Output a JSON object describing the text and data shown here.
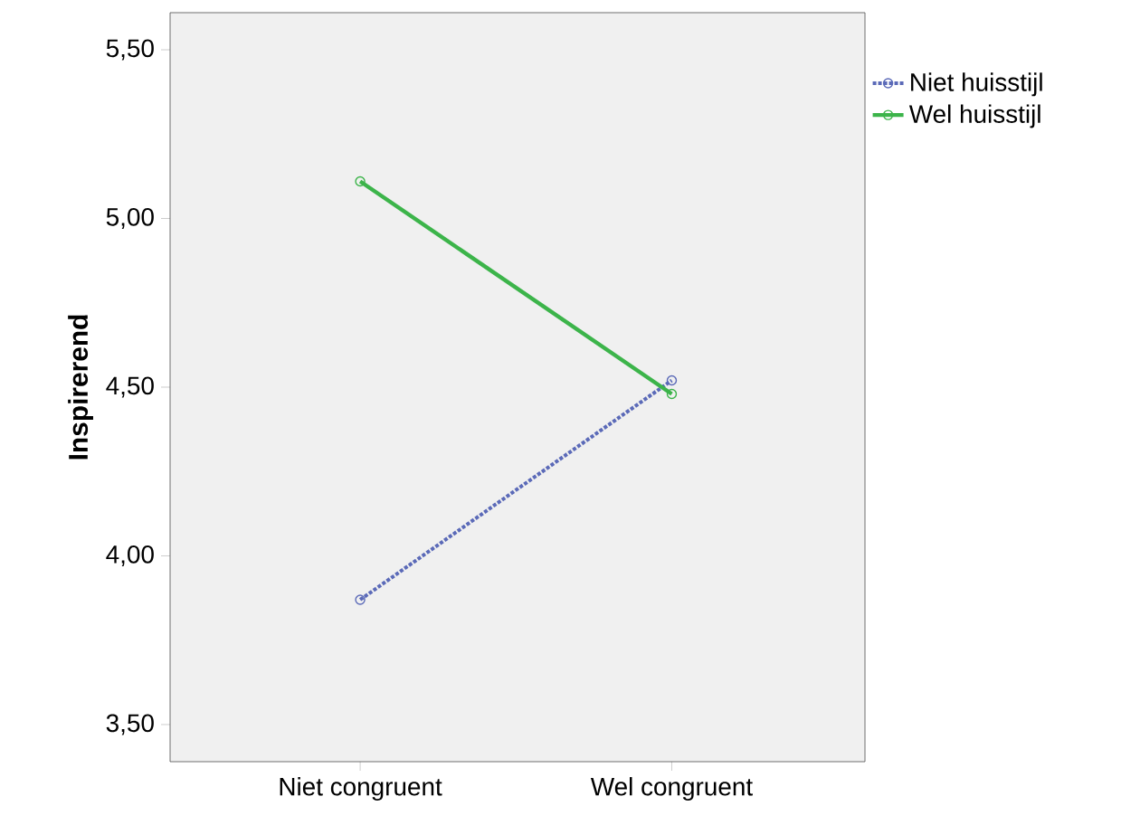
{
  "chart_data": {
    "type": "line",
    "ylabel": "Inspirerend",
    "categories": [
      "Niet congruent",
      "Wel congruent"
    ],
    "series": [
      {
        "name": "Niet huisstijl",
        "color": "#5b6ab8",
        "values": [
          3.87,
          4.52
        ],
        "line_style": "dotted"
      },
      {
        "name": "Wel huisstijl",
        "color": "#3cb44a",
        "values": [
          5.11,
          4.48
        ],
        "line_style": "solid"
      }
    ],
    "ylim": [
      3.39,
      5.61
    ],
    "yticks": [
      {
        "value": 3.5,
        "label": "3,50"
      },
      {
        "value": 4.0,
        "label": "4,00"
      },
      {
        "value": 4.5,
        "label": "4,50"
      },
      {
        "value": 5.0,
        "label": "5,00"
      },
      {
        "value": 5.5,
        "label": "5,50"
      }
    ],
    "marker": "circle",
    "legend": "top right"
  }
}
